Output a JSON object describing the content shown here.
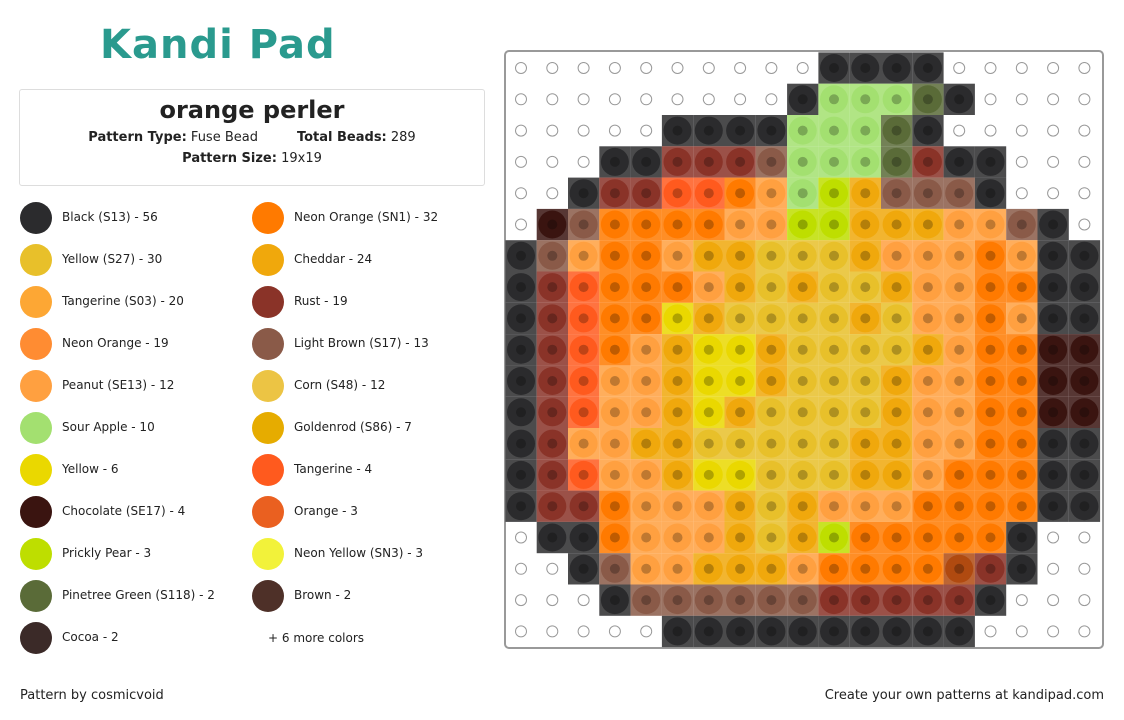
{
  "header": {
    "logo": "Kandi Pad",
    "title": "orange perler",
    "pattern_type_label": "Pattern Type:",
    "pattern_type": "Fuse Bead",
    "total_beads_label": "Total Beads:",
    "total_beads": "289",
    "pattern_size_label": "Pattern Size:",
    "pattern_size": "19x19"
  },
  "legend": {
    "left": [
      {
        "label": "Black (S13) - 56",
        "color": "#2b2b2d"
      },
      {
        "label": "Yellow (S27) - 30",
        "color": "#e8c02a"
      },
      {
        "label": "Tangerine (S03) - 20",
        "color": "#fda734"
      },
      {
        "label": "Neon Orange - 19",
        "color": "#ff8c32"
      },
      {
        "label": "Peanut (SE13) - 12",
        "color": "#ffa040"
      },
      {
        "label": "Sour Apple - 10",
        "color": "#a3e070"
      },
      {
        "label": "Yellow - 6",
        "color": "#ead800"
      },
      {
        "label": "Chocolate (SE17) - 4",
        "color": "#3a1410"
      },
      {
        "label": "Prickly Pear - 3",
        "color": "#bede00"
      },
      {
        "label": "Pinetree Green (S118) - 2",
        "color": "#5a6b38"
      },
      {
        "label": "Cocoa - 2",
        "color": "#3b2a28"
      }
    ],
    "right": [
      {
        "label": "Neon Orange (SN1) - 32",
        "color": "#ff7a00"
      },
      {
        "label": "Cheddar - 24",
        "color": "#f0a80c"
      },
      {
        "label": "Rust - 19",
        "color": "#8a3328"
      },
      {
        "label": "Light Brown (S17) - 13",
        "color": "#8a5a48"
      },
      {
        "label": "Corn (S48) - 12",
        "color": "#ecc444"
      },
      {
        "label": "Goldenrod (S86) - 7",
        "color": "#e6ac00"
      },
      {
        "label": "Tangerine - 4",
        "color": "#ff5a1e"
      },
      {
        "label": "Orange - 3",
        "color": "#ea6020"
      },
      {
        "label": "Neon Yellow (SN3) - 3",
        "color": "#f2f23a"
      },
      {
        "label": "Brown - 2",
        "color": "#4e3028"
      }
    ],
    "more": "+ 6 more colors"
  },
  "footer": {
    "credit": "Pattern by cosmicvoid",
    "cta": "Create your own patterns at kandipad.com"
  }
}
